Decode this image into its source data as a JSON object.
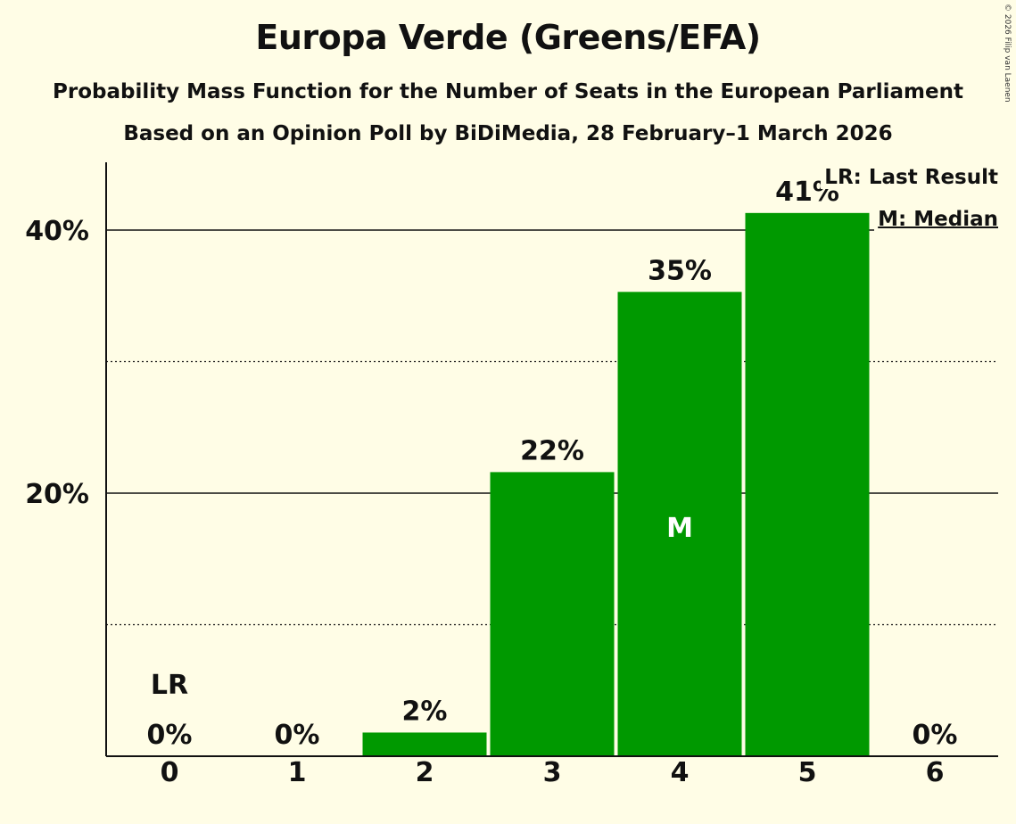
{
  "chart_data": {
    "type": "bar",
    "title": "Europa Verde (Greens/EFA)",
    "subtitle": "Probability Mass Function for the Number of Seats in the European Parliament",
    "subtitle2": "Based on an Opinion Poll by BiDiMedia, 28 February–1 March 2026",
    "xlabel": "",
    "ylabel": "",
    "categories": [
      "0",
      "1",
      "2",
      "3",
      "4",
      "5",
      "6"
    ],
    "values": [
      0,
      0,
      1.8,
      21.6,
      35.3,
      41.3,
      0
    ],
    "value_labels": [
      "0%",
      "0%",
      "2%",
      "22%",
      "35%",
      "41%",
      "0%"
    ],
    "ylim": [
      0,
      45
    ],
    "yticks": [
      {
        "value": 20,
        "label": "20%"
      },
      {
        "value": 40,
        "label": "40%"
      }
    ],
    "minor_gridlines": [
      10,
      30
    ],
    "last_result_index": 0,
    "median_index": 4,
    "last_result_marker": "LR",
    "median_marker": "M",
    "legend": {
      "last_result": "LR: Last Result",
      "median": "M: Median",
      "position": "top-right"
    },
    "bar_color": "#009900"
  },
  "copyright": "© 2026 Filip van Laenen"
}
